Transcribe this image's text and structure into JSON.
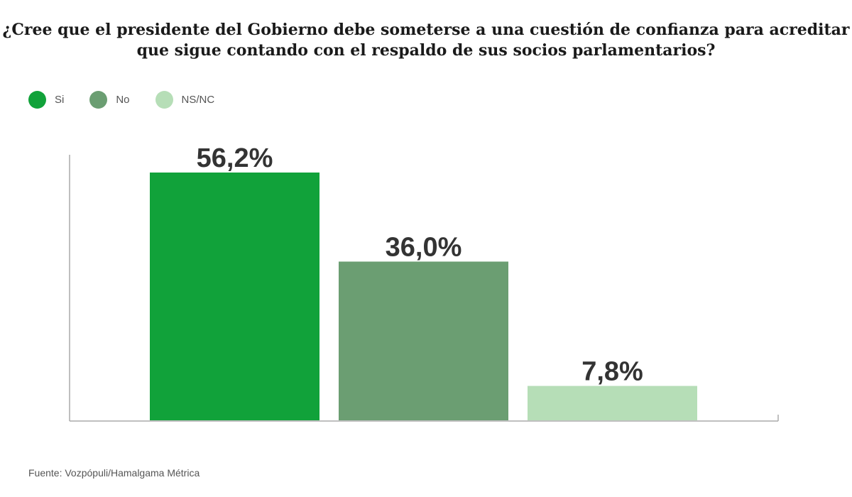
{
  "chart_data": {
    "type": "bar",
    "title": [
      "¿Cree que el presidente del Gobierno debe someterse a una cuestión de confianza para acreditar",
      "que sigue contando con el respaldo de sus socios parlamentarios?"
    ],
    "categories": [
      "Si",
      "No",
      "NS/NC"
    ],
    "values": [
      56.2,
      36.0,
      7.8
    ],
    "labels": [
      "56,2%",
      "36,0%",
      "7,8%"
    ],
    "colors": [
      "#11a23a",
      "#6b9e72",
      "#b6deb7"
    ],
    "ylim": [
      0,
      60
    ],
    "grid": false,
    "legend": "top-left",
    "xlabel": "",
    "ylabel": ""
  },
  "source": "Fuente: Vozpópuli/Hamalgama Métrica"
}
